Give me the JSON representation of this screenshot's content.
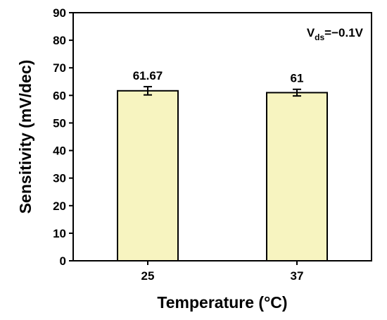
{
  "chart_data": {
    "type": "bar",
    "title": "",
    "xlabel": "Temperature (°C)",
    "ylabel": "Sensitivity (mV/dec)",
    "categories": [
      "25",
      "37"
    ],
    "values": [
      61.67,
      61
    ],
    "errors": [
      1.5,
      1.2
    ],
    "data_labels": [
      "61.67",
      "61"
    ],
    "ylim": [
      0,
      90
    ],
    "yticks": [
      0,
      10,
      20,
      30,
      40,
      50,
      60,
      70,
      80,
      90
    ],
    "grid": false,
    "bar_color": "#f7f4c0",
    "annotation": {
      "main": "V",
      "sub": "ds",
      "rest": "=−0.1V"
    }
  }
}
